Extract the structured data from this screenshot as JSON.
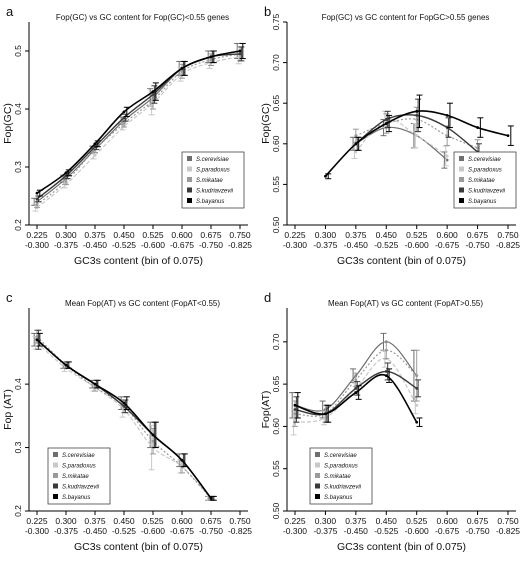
{
  "figure": {
    "colors": {
      "S.cerevisiae": "#6e6e6e",
      "S.paradoxus": "#c8c8c8",
      "S.mikatae": "#9a9a9a",
      "S.kudriavzevii": "#3a3a3a",
      "S.bayanus": "#000000"
    }
  },
  "chart_data": [
    {
      "panel": "a",
      "type": "line",
      "title": "Fop(GC) vs GC content for Fop(GC)<0.55 genes",
      "xlabel": "GC3s content (bin of 0.075)",
      "ylabel": "Fop(GC)",
      "x_ticks_top": [
        "0.225",
        "0.300",
        "0.375",
        "0.450",
        "0.525",
        "0.600",
        "0.675",
        "0.750"
      ],
      "x_ticks_bottom": [
        "-0.300",
        "-0.375",
        "-0.450",
        "-0.525",
        "-0.600",
        "-0.675",
        "-0.750",
        "-0.825"
      ],
      "ylim": [
        0.2,
        0.55
      ],
      "y_ticks": [
        "0.2",
        "0.3",
        "0.4",
        "0.5"
      ],
      "y_tick_values": [
        0.2,
        0.3,
        0.4,
        0.5
      ],
      "legend": [
        "S.cerevisiae",
        "S.paradoxus",
        "S.mikatae",
        "S.kudriavzevii",
        "S.bayanus"
      ],
      "series": [
        {
          "name": "S.cerevisiae",
          "x": [
            0.225,
            0.3,
            0.375,
            0.45,
            0.525,
            0.6,
            0.675,
            0.75
          ],
          "y": [
            0.24,
            0.28,
            0.33,
            0.38,
            0.42,
            0.47,
            0.49,
            0.5
          ],
          "err": [
            0.006,
            0.006,
            0.006,
            0.006,
            0.015,
            0.012,
            0.01,
            0.013
          ]
        },
        {
          "name": "S.paradoxus",
          "x": [
            0.225,
            0.3,
            0.375,
            0.45,
            0.525,
            0.6,
            0.675,
            0.75
          ],
          "y": [
            0.23,
            0.27,
            0.32,
            0.37,
            0.41,
            0.46,
            0.48,
            0.49
          ],
          "err": [
            0.006,
            0.006,
            0.006,
            0.006,
            0.02,
            0.012,
            0.01,
            0.012
          ]
        },
        {
          "name": "S.mikatae",
          "x": [
            0.225,
            0.3,
            0.375,
            0.45,
            0.525,
            0.6,
            0.675,
            0.75
          ],
          "y": [
            0.235,
            0.275,
            0.33,
            0.375,
            0.415,
            0.465,
            0.485,
            0.495
          ],
          "err": [
            0.005,
            0.005,
            0.005,
            0.006,
            0.015,
            0.012,
            0.01,
            0.012
          ]
        },
        {
          "name": "S.kudriavzevii",
          "x": [
            0.225,
            0.3,
            0.375,
            0.45,
            0.525,
            0.6,
            0.675,
            0.75
          ],
          "y": [
            0.245,
            0.285,
            0.335,
            0.385,
            0.425,
            0.47,
            0.49,
            0.495
          ],
          "err": [
            0.005,
            0.005,
            0.005,
            0.006,
            0.015,
            0.012,
            0.01,
            0.012
          ]
        },
        {
          "name": "S.bayanus",
          "x": [
            0.225,
            0.3,
            0.375,
            0.45,
            0.525,
            0.6,
            0.675,
            0.75
          ],
          "y": [
            0.255,
            0.29,
            0.34,
            0.395,
            0.43,
            0.47,
            0.49,
            0.5
          ],
          "err": [
            0.005,
            0.005,
            0.005,
            0.008,
            0.015,
            0.012,
            0.01,
            0.013
          ]
        }
      ]
    },
    {
      "panel": "b",
      "type": "line",
      "title": "Fop(GC) vs GC content for FopGC>0.55 genes",
      "xlabel": "GC3s content (bin of 0.075)",
      "ylabel": "Fop(GC)",
      "x_ticks_top": [
        "0.225",
        "0.300",
        "0.375",
        "0.450",
        "0.525",
        "0.600",
        "0.675",
        "0.750"
      ],
      "x_ticks_bottom": [
        "-0.300",
        "-0.375",
        "-0.450",
        "-0.525",
        "-0.600",
        "-0.675",
        "-0.750",
        "-0.825"
      ],
      "ylim": [
        0.5,
        0.75
      ],
      "y_ticks": [
        "0.50",
        "0.55",
        "0.60",
        "0.65",
        "0.70",
        "0.75"
      ],
      "y_tick_values": [
        0.5,
        0.55,
        0.6,
        0.65,
        0.7,
        0.75
      ],
      "legend": [
        "S.cerevisiae",
        "S.paradoxus",
        "S.mikatae",
        "S.kudriavzevii",
        "S.bayanus"
      ],
      "series": [
        {
          "name": "S.cerevisiae",
          "x": [
            0.375,
            0.45,
            0.525,
            0.6
          ],
          "y": [
            0.6,
            0.62,
            0.61,
            0.58
          ],
          "err": [
            0.008,
            0.01,
            0.015,
            0.01
          ]
        },
        {
          "name": "S.paradoxus",
          "x": [
            0.375,
            0.45,
            0.525,
            0.6
          ],
          "y": [
            0.59,
            0.63,
            0.61,
            0.585
          ],
          "err": [
            0.008,
            0.01,
            0.015,
            0.012
          ]
        },
        {
          "name": "S.mikatae",
          "x": [
            0.375,
            0.45,
            0.525,
            0.6,
            0.675
          ],
          "y": [
            0.61,
            0.625,
            0.63,
            0.61,
            0.595
          ],
          "err": [
            0.008,
            0.012,
            0.015,
            0.012,
            0.01
          ]
        },
        {
          "name": "S.kudriavzevii",
          "x": [
            0.375,
            0.45,
            0.525,
            0.6,
            0.675
          ],
          "y": [
            0.6,
            0.63,
            0.635,
            0.62,
            0.59
          ],
          "err": [
            0.008,
            0.01,
            0.02,
            0.012,
            0.01
          ]
        },
        {
          "name": "S.bayanus",
          "x": [
            0.3,
            0.375,
            0.45,
            0.525,
            0.6,
            0.675,
            0.75
          ],
          "y": [
            0.56,
            0.6,
            0.625,
            0.64,
            0.635,
            0.62,
            0.61
          ],
          "err": [
            0.003,
            0.008,
            0.01,
            0.02,
            0.015,
            0.012,
            0.012
          ]
        }
      ]
    },
    {
      "panel": "c",
      "type": "line",
      "title": "Mean Fop(AT)  vs GC content   (FopAT<0.55)",
      "xlabel": "GC3s content (bin of 0.075)",
      "ylabel": "Fop (AT)",
      "x_ticks_top": [
        "0.225",
        "0.300",
        "0.375",
        "0.450",
        "0.525",
        "0.600",
        "0.675",
        "0.750"
      ],
      "x_ticks_bottom": [
        "-0.300",
        "-0.375",
        "-0.450",
        "-0.525",
        "-0.600",
        "-0.675",
        "-0.750",
        "-0.825"
      ],
      "ylim": [
        0.2,
        0.52
      ],
      "y_ticks": [
        "0.2",
        "0.3",
        "0.4"
      ],
      "y_tick_values": [
        0.2,
        0.3,
        0.4
      ],
      "legend": [
        "S.cerevisiae",
        "S.paradoxus",
        "S.mikatae",
        "S.kudriavzevii",
        "S.bayanus"
      ],
      "series": [
        {
          "name": "S.cerevisiae",
          "x": [
            0.225,
            0.3,
            0.375,
            0.45,
            0.525,
            0.6,
            0.675
          ],
          "y": [
            0.47,
            0.43,
            0.4,
            0.37,
            0.32,
            0.28,
            0.22
          ],
          "err": [
            0.01,
            0.005,
            0.006,
            0.01,
            0.02,
            0.01,
            0.003
          ]
        },
        {
          "name": "S.paradoxus",
          "x": [
            0.225,
            0.3,
            0.375,
            0.45,
            0.525,
            0.6,
            0.675
          ],
          "y": [
            0.465,
            0.425,
            0.395,
            0.36,
            0.3,
            0.27,
            0.22
          ],
          "err": [
            0.01,
            0.005,
            0.006,
            0.012,
            0.035,
            0.01,
            0.003
          ]
        },
        {
          "name": "S.mikatae",
          "x": [
            0.225,
            0.3,
            0.375,
            0.45,
            0.525,
            0.6,
            0.675
          ],
          "y": [
            0.475,
            0.43,
            0.395,
            0.365,
            0.31,
            0.27,
            0.22
          ],
          "err": [
            0.01,
            0.005,
            0.006,
            0.01,
            0.02,
            0.01,
            0.003
          ]
        },
        {
          "name": "S.kudriavzevii",
          "x": [
            0.225,
            0.3,
            0.375,
            0.45,
            0.525,
            0.6,
            0.675
          ],
          "y": [
            0.47,
            0.43,
            0.4,
            0.365,
            0.32,
            0.28,
            0.22
          ],
          "err": [
            0.015,
            0.005,
            0.006,
            0.01,
            0.02,
            0.01,
            0.003
          ]
        },
        {
          "name": "S.bayanus",
          "x": [
            0.225,
            0.3,
            0.375,
            0.45,
            0.525,
            0.6,
            0.675
          ],
          "y": [
            0.47,
            0.43,
            0.4,
            0.37,
            0.32,
            0.28,
            0.22
          ],
          "err": [
            0.01,
            0.005,
            0.006,
            0.01,
            0.02,
            0.01,
            0.003
          ]
        }
      ]
    },
    {
      "panel": "d",
      "type": "line",
      "title": "Mean Fop(AT) vs GC content   (FopAT>0.55)",
      "xlabel": "GC3s content (bin of 0.075)",
      "ylabel": "Fop(AT)",
      "x_ticks_top": [
        "0.225",
        "0.300",
        "0.375",
        "0.450",
        "0.525",
        "0.600",
        "0.675",
        "0.750"
      ],
      "x_ticks_bottom": [
        "-0.300",
        "-0.375",
        "-0.450",
        "-0.525",
        "-0.600",
        "-0.675",
        "-0.750",
        "-0.825"
      ],
      "ylim": [
        0.5,
        0.74
      ],
      "y_ticks": [
        "0.50",
        "0.55",
        "0.60",
        "0.65",
        "0.70"
      ],
      "y_tick_values": [
        0.5,
        0.55,
        0.6,
        0.65,
        0.7
      ],
      "legend": [
        "S.cerevisiae",
        "S.paradoxus",
        "S.mikatae",
        "S.kudriavzevii",
        "S.bayanus"
      ],
      "series": [
        {
          "name": "S.cerevisiae",
          "x": [
            0.225,
            0.3,
            0.375,
            0.45,
            0.525
          ],
          "y": [
            0.625,
            0.62,
            0.66,
            0.7,
            0.66
          ],
          "err": [
            0.015,
            0.01,
            0.008,
            0.01,
            0.03
          ]
        },
        {
          "name": "S.paradoxus",
          "x": [
            0.225,
            0.3,
            0.375,
            0.45,
            0.525
          ],
          "y": [
            0.605,
            0.61,
            0.645,
            0.68,
            0.625
          ],
          "err": [
            0.015,
            0.008,
            0.008,
            0.01,
            0.01
          ]
        },
        {
          "name": "S.mikatae",
          "x": [
            0.225,
            0.3,
            0.375,
            0.45,
            0.525
          ],
          "y": [
            0.615,
            0.615,
            0.655,
            0.69,
            0.66
          ],
          "err": [
            0.015,
            0.01,
            0.008,
            0.01,
            0.03
          ]
        },
        {
          "name": "S.kudriavzevii",
          "x": [
            0.225,
            0.3,
            0.375,
            0.45,
            0.525
          ],
          "y": [
            0.62,
            0.615,
            0.645,
            0.665,
            0.645
          ],
          "err": [
            0.015,
            0.01,
            0.008,
            0.01,
            0.01
          ]
        },
        {
          "name": "S.bayanus",
          "x": [
            0.225,
            0.3,
            0.375,
            0.45,
            0.525
          ],
          "y": [
            0.625,
            0.615,
            0.64,
            0.66,
            0.605
          ],
          "err": [
            0.015,
            0.01,
            0.008,
            0.008,
            0.005
          ]
        }
      ]
    }
  ]
}
